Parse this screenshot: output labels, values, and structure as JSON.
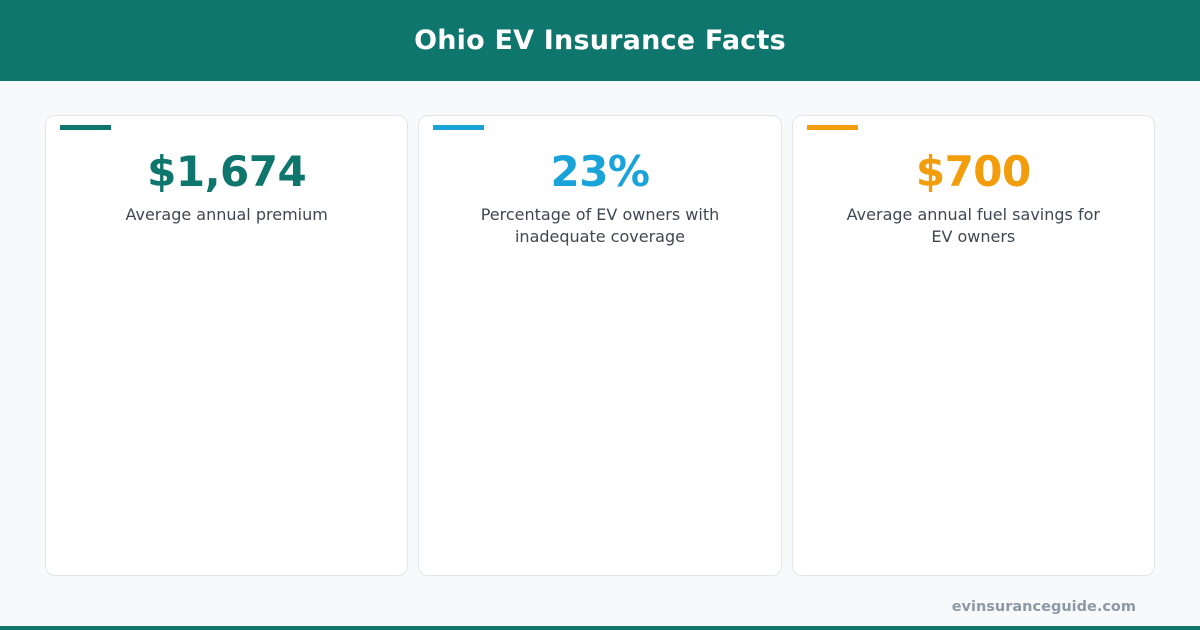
{
  "header": {
    "title": "Ohio EV Insurance Facts"
  },
  "cards": [
    {
      "value": "$1,674",
      "label": "Average annual premium",
      "color": "#0f766e"
    },
    {
      "value": "23%",
      "label": "Percentage of EV owners with inadequate coverage",
      "color": "#1aa3d9"
    },
    {
      "value": "$700",
      "label": "Average annual fuel savings for EV owners",
      "color": "#f29d0c"
    }
  ],
  "footer": {
    "site": "evinsuranceguide.com"
  },
  "colors": {
    "brand": "#0f766e"
  }
}
